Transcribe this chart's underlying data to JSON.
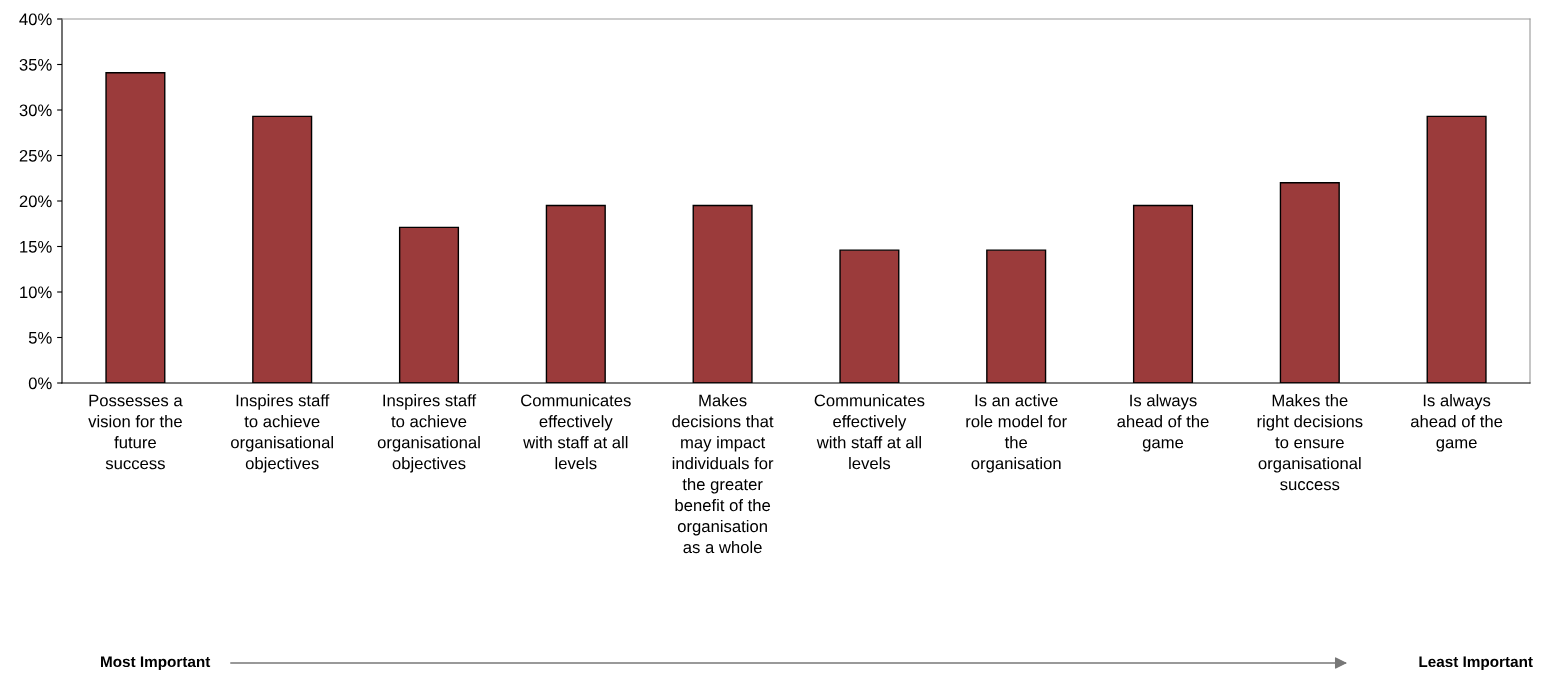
{
  "chart_data": {
    "type": "bar",
    "categories": [
      "Possesses a\nvision for the\nfuture\nsuccess",
      "Inspires staff\nto achieve\norganisational\nobjectives",
      "Inspires staff\nto achieve\norganisational\nobjectives",
      "Communicates\neffectively\nwith staff at all\nlevels",
      "Makes\ndecisions that\nmay impact\nindividuals for\nthe greater\nbenefit of the\norganisation\nas a whole",
      "Communicates\neffectively\nwith staff at all\nlevels",
      "Is an active\nrole model for\nthe\norganisation",
      "Is always\nahead of the\ngame",
      "Makes the\nright decisions\nto ensure\norganisational\nsuccess",
      "Is always\nahead of the\ngame"
    ],
    "values": [
      34.1,
      29.3,
      17.1,
      19.5,
      19.5,
      14.6,
      14.6,
      19.5,
      22.0,
      29.3
    ],
    "color": "#9b3b3b",
    "ylim": [
      0,
      40
    ],
    "yticks": [
      {
        "value": 0,
        "label": "0%"
      },
      {
        "value": 5,
        "label": "5%"
      },
      {
        "value": 10,
        "label": "10%"
      },
      {
        "value": 15,
        "label": "15%"
      },
      {
        "value": 20,
        "label": "20%"
      },
      {
        "value": 25,
        "label": "25%"
      },
      {
        "value": 30,
        "label": "30%"
      },
      {
        "value": 35,
        "label": "35%"
      },
      {
        "value": 40,
        "label": "40%"
      }
    ],
    "grid": false,
    "annotations": [
      "Most Important",
      "Least Important"
    ]
  }
}
